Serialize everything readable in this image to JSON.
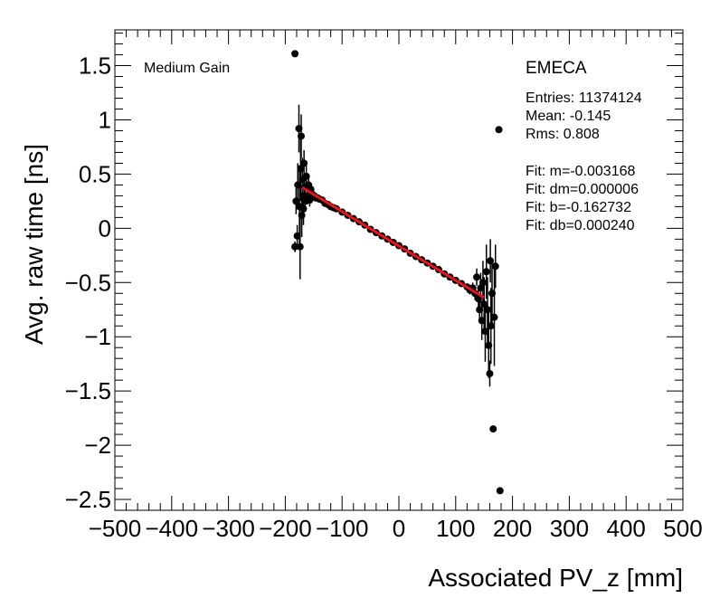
{
  "chart_data": {
    "type": "scatter",
    "title": "",
    "xlabel": "Associated PV_z [mm]",
    "ylabel": "Avg. raw time [ns]",
    "xlim": [
      -500,
      500
    ],
    "ylim": [
      -2.6,
      1.83
    ],
    "xticks": [
      -500,
      -400,
      -300,
      -200,
      -100,
      0,
      100,
      200,
      300,
      400,
      500
    ],
    "yticks": [
      -2.5,
      -2,
      -1.5,
      -1,
      -0.5,
      0,
      0.5,
      1,
      1.5
    ],
    "xtick_labels": [
      "−500",
      "−400",
      "−300",
      "−200",
      "−100",
      "0",
      "100",
      "200",
      "300",
      "400",
      "500"
    ],
    "ytick_labels": [
      "−2.5",
      "−2",
      "−1.5",
      "−1",
      "−0.5",
      "0",
      "0.5",
      "1",
      "1.5"
    ],
    "grid": false,
    "marker_color": "#000000",
    "fit_color": "#e8141a",
    "annotations": {
      "gain": "Medium Gain",
      "region": "EMECA",
      "entries": "Entries: 11374124",
      "mean": "Mean: -0.145",
      "rms": "Rms: 0.808",
      "fit_m": "Fit: m=-0.003168",
      "fit_dm": "Fit: dm=0.000006",
      "fit_b": "Fit: b=-0.162732",
      "fit_db": "Fit: db=0.000240"
    },
    "fit_line": {
      "slope": -0.003168,
      "intercept": -0.162732,
      "x_range": [
        -170,
        150
      ]
    },
    "points": [
      {
        "x": -183,
        "y": 1.61,
        "err": 0.0
      },
      {
        "x": -183,
        "y": -0.17,
        "err": 0.05
      },
      {
        "x": -181,
        "y": 0.25,
        "err": 0.12
      },
      {
        "x": -179,
        "y": -0.07,
        "err": 0.1
      },
      {
        "x": -178,
        "y": 0.4,
        "err": 0.2
      },
      {
        "x": -176,
        "y": 0.92,
        "err": 0.22
      },
      {
        "x": -175,
        "y": 0.2,
        "err": 0.35
      },
      {
        "x": -174,
        "y": -0.17,
        "err": 0.3
      },
      {
        "x": -173,
        "y": 0.55,
        "err": 0.3
      },
      {
        "x": -172,
        "y": 0.85,
        "err": 0.2
      },
      {
        "x": -171,
        "y": 0.12,
        "err": 0.2
      },
      {
        "x": -170,
        "y": 0.45,
        "err": 0.2
      },
      {
        "x": -169,
        "y": 0.3,
        "err": 0.15
      },
      {
        "x": -168,
        "y": 0.18,
        "err": 0.15
      },
      {
        "x": -167,
        "y": 0.6,
        "err": 0.12
      },
      {
        "x": -166,
        "y": 0.38,
        "err": 0.12
      },
      {
        "x": -165,
        "y": 0.25,
        "err": 0.1
      },
      {
        "x": -163,
        "y": 0.48,
        "err": 0.1
      },
      {
        "x": -161,
        "y": 0.3,
        "err": 0.08
      },
      {
        "x": -159,
        "y": 0.4,
        "err": 0.08
      },
      {
        "x": -157,
        "y": 0.26,
        "err": 0.06
      },
      {
        "x": -155,
        "y": 0.36,
        "err": 0.06
      },
      {
        "x": -152,
        "y": 0.31,
        "err": 0.05
      },
      {
        "x": -149,
        "y": 0.3,
        "err": 0.04
      },
      {
        "x": -146,
        "y": 0.28,
        "err": 0.03
      },
      {
        "x": -143,
        "y": 0.28,
        "err": 0.03
      },
      {
        "x": -140,
        "y": 0.27,
        "err": 0.02
      },
      {
        "x": -135,
        "y": 0.26,
        "err": 0.02
      },
      {
        "x": -130,
        "y": 0.23,
        "err": 0.02
      },
      {
        "x": -125,
        "y": 0.22,
        "err": 0.01
      },
      {
        "x": -120,
        "y": 0.2,
        "err": 0.01
      },
      {
        "x": -115,
        "y": 0.19,
        "err": 0.01
      },
      {
        "x": -110,
        "y": 0.18,
        "err": 0.01
      },
      {
        "x": -100,
        "y": 0.15,
        "err": 0.01
      },
      {
        "x": -90,
        "y": 0.12,
        "err": 0.01
      },
      {
        "x": -80,
        "y": 0.09,
        "err": 0.01
      },
      {
        "x": -70,
        "y": 0.06,
        "err": 0.01
      },
      {
        "x": -60,
        "y": 0.03,
        "err": 0.01
      },
      {
        "x": -50,
        "y": -0.01,
        "err": 0.01
      },
      {
        "x": -40,
        "y": -0.04,
        "err": 0.01
      },
      {
        "x": -30,
        "y": -0.07,
        "err": 0.01
      },
      {
        "x": -20,
        "y": -0.1,
        "err": 0.01
      },
      {
        "x": -10,
        "y": -0.13,
        "err": 0.01
      },
      {
        "x": 0,
        "y": -0.16,
        "err": 0.01
      },
      {
        "x": 10,
        "y": -0.19,
        "err": 0.01
      },
      {
        "x": 20,
        "y": -0.23,
        "err": 0.01
      },
      {
        "x": 30,
        "y": -0.26,
        "err": 0.01
      },
      {
        "x": 40,
        "y": -0.29,
        "err": 0.01
      },
      {
        "x": 50,
        "y": -0.32,
        "err": 0.01
      },
      {
        "x": 60,
        "y": -0.35,
        "err": 0.01
      },
      {
        "x": 70,
        "y": -0.38,
        "err": 0.01
      },
      {
        "x": 80,
        "y": -0.42,
        "err": 0.01
      },
      {
        "x": 90,
        "y": -0.45,
        "err": 0.02
      },
      {
        "x": 100,
        "y": -0.48,
        "err": 0.02
      },
      {
        "x": 110,
        "y": -0.51,
        "err": 0.02
      },
      {
        "x": 120,
        "y": -0.54,
        "err": 0.03
      },
      {
        "x": 125,
        "y": -0.57,
        "err": 0.04
      },
      {
        "x": 130,
        "y": -0.55,
        "err": 0.05
      },
      {
        "x": 134,
        "y": -0.6,
        "err": 0.06
      },
      {
        "x": 137,
        "y": -0.45,
        "err": 0.08
      },
      {
        "x": 140,
        "y": -0.65,
        "err": 0.1
      },
      {
        "x": 142,
        "y": -0.75,
        "err": 0.12
      },
      {
        "x": 144,
        "y": -0.55,
        "err": 0.14
      },
      {
        "x": 146,
        "y": -0.85,
        "err": 0.18
      },
      {
        "x": 148,
        "y": -0.5,
        "err": 0.2
      },
      {
        "x": 150,
        "y": -0.7,
        "err": 0.25
      },
      {
        "x": 152,
        "y": -0.95,
        "err": 0.28
      },
      {
        "x": 154,
        "y": -0.4,
        "err": 0.25
      },
      {
        "x": 156,
        "y": -0.75,
        "err": 0.3
      },
      {
        "x": 158,
        "y": -1.08,
        "err": 0.3
      },
      {
        "x": 160,
        "y": -1.34,
        "err": 0.12
      },
      {
        "x": 161,
        "y": -0.3,
        "err": 0.2
      },
      {
        "x": 162,
        "y": -0.9,
        "err": 0.35
      },
      {
        "x": 164,
        "y": -0.6,
        "err": 0.3
      },
      {
        "x": 166,
        "y": -1.85,
        "err": 0.0
      },
      {
        "x": 168,
        "y": -0.82,
        "err": 0.45
      },
      {
        "x": 170,
        "y": -0.35,
        "err": 0.2
      },
      {
        "x": 176,
        "y": 0.91,
        "err": 0.0
      },
      {
        "x": 178,
        "y": -2.42,
        "err": 0.0
      }
    ]
  }
}
